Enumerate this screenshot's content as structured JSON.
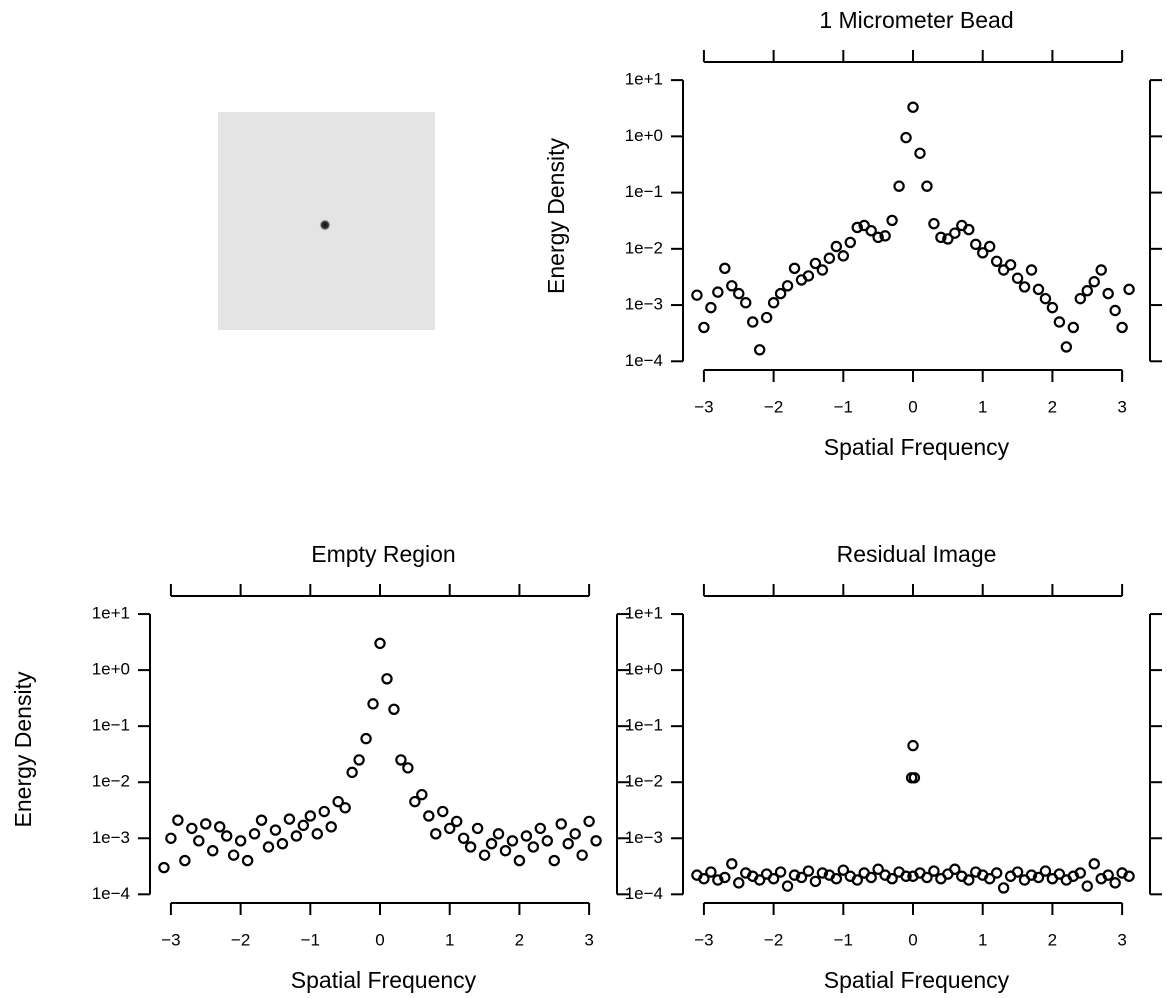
{
  "chart_data": [
    {
      "type": "scatter",
      "title": "1 Micrometer Bead",
      "xlabel": "Spatial Frequency",
      "ylabel": "Energy Density",
      "log_y": true,
      "marker": "open-circle",
      "color": "#000000",
      "x": [
        -3.1,
        -3.0,
        -2.9,
        -2.8,
        -2.7,
        -2.6,
        -2.5,
        -2.4,
        -2.3,
        -2.2,
        -2.1,
        -2.0,
        -1.9,
        -1.8,
        -1.7,
        -1.6,
        -1.5,
        -1.4,
        -1.3,
        -1.2,
        -1.1,
        -1.0,
        -0.9,
        -0.8,
        -0.7,
        -0.6,
        -0.5,
        -0.4,
        -0.3,
        -0.2,
        -0.1,
        0,
        0.1,
        0.2,
        0.3,
        0.4,
        0.5,
        0.6,
        0.7,
        0.8,
        0.9,
        1.0,
        1.1,
        1.2,
        1.3,
        1.4,
        1.5,
        1.6,
        1.7,
        1.8,
        1.9,
        2.0,
        2.1,
        2.2,
        2.3,
        2.4,
        2.5,
        2.6,
        2.7,
        2.8,
        2.9,
        3.0,
        3.1
      ],
      "values": [
        0.0015,
        0.0004,
        0.0009,
        0.0017,
        0.0045,
        0.0022,
        0.0016,
        0.0011,
        0.0005,
        0.00016,
        0.0006,
        0.0011,
        0.0016,
        0.0022,
        0.0045,
        0.0028,
        0.0033,
        0.0055,
        0.0042,
        0.0068,
        0.011,
        0.0075,
        0.013,
        0.024,
        0.026,
        0.021,
        0.016,
        0.017,
        0.032,
        0.13,
        0.95,
        3.3,
        0.5,
        0.13,
        0.028,
        0.016,
        0.015,
        0.019,
        0.026,
        0.022,
        0.012,
        0.0085,
        0.011,
        0.006,
        0.0042,
        0.0052,
        0.003,
        0.0021,
        0.0042,
        0.0019,
        0.0013,
        0.0009,
        0.0005,
        0.00018,
        0.0004,
        0.0013,
        0.0018,
        0.0026,
        0.0042,
        0.0016,
        0.0008,
        0.0004,
        0.0019
      ],
      "xlim": [
        -3.3,
        3.4
      ],
      "ylim": [
        7e-05,
        21
      ],
      "xticks": [
        {
          "value": -3,
          "label": "−3"
        },
        {
          "value": -2,
          "label": "−2"
        },
        {
          "value": -1,
          "label": "−1"
        },
        0,
        1,
        2,
        3
      ],
      "yticks": [
        {
          "value": 0.0001,
          "label": "1e−4"
        },
        {
          "value": 0.001,
          "label": "1e−3"
        },
        {
          "value": 0.01,
          "label": "1e−2"
        },
        {
          "value": 0.1,
          "label": "1e−1"
        },
        {
          "value": 1,
          "label": "1e+0"
        },
        {
          "value": 10,
          "label": "1e+1"
        }
      ]
    },
    {
      "type": "scatter",
      "title": "Empty Region",
      "xlabel": "Spatial Frequency",
      "ylabel": "Energy Density",
      "log_y": true,
      "marker": "open-circle",
      "color": "#000000",
      "x": [
        -3.1,
        -3.0,
        -2.9,
        -2.8,
        -2.7,
        -2.6,
        -2.5,
        -2.4,
        -2.3,
        -2.2,
        -2.1,
        -2.0,
        -1.9,
        -1.8,
        -1.7,
        -1.6,
        -1.5,
        -1.4,
        -1.3,
        -1.2,
        -1.1,
        -1.0,
        -0.9,
        -0.8,
        -0.7,
        -0.6,
        -0.5,
        -0.4,
        -0.3,
        -0.2,
        -0.1,
        0,
        0.1,
        0.2,
        0.3,
        0.4,
        0.5,
        0.6,
        0.7,
        0.8,
        0.9,
        1.0,
        1.1,
        1.2,
        1.3,
        1.4,
        1.5,
        1.6,
        1.7,
        1.8,
        1.9,
        2.0,
        2.1,
        2.2,
        2.3,
        2.4,
        2.5,
        2.6,
        2.7,
        2.8,
        2.9,
        3.0,
        3.1
      ],
      "values": [
        0.0003,
        0.001,
        0.0021,
        0.0004,
        0.0015,
        0.0009,
        0.0018,
        0.0006,
        0.0016,
        0.0011,
        0.0005,
        0.0009,
        0.0004,
        0.0012,
        0.0021,
        0.0007,
        0.0014,
        0.0008,
        0.0022,
        0.0011,
        0.0017,
        0.0025,
        0.0012,
        0.003,
        0.0016,
        0.0045,
        0.0035,
        0.015,
        0.025,
        0.06,
        0.25,
        3.0,
        0.7,
        0.2,
        0.025,
        0.018,
        0.0045,
        0.006,
        0.0025,
        0.0012,
        0.003,
        0.0015,
        0.002,
        0.001,
        0.0007,
        0.0015,
        0.0005,
        0.0008,
        0.0012,
        0.0006,
        0.0009,
        0.0004,
        0.0011,
        0.0007,
        0.0015,
        0.0009,
        0.0004,
        0.0018,
        0.0008,
        0.0012,
        0.0005,
        0.002,
        0.0009
      ],
      "xlim": [
        -3.3,
        3.4
      ],
      "ylim": [
        7e-05,
        21
      ],
      "xticks": [
        {
          "value": -3,
          "label": "−3"
        },
        {
          "value": -2,
          "label": "−2"
        },
        {
          "value": -1,
          "label": "−1"
        },
        0,
        1,
        2,
        3
      ],
      "yticks": [
        {
          "value": 0.0001,
          "label": "1e−4"
        },
        {
          "value": 0.001,
          "label": "1e−3"
        },
        {
          "value": 0.01,
          "label": "1e−2"
        },
        {
          "value": 0.1,
          "label": "1e−1"
        },
        {
          "value": 1,
          "label": "1e+0"
        },
        {
          "value": 10,
          "label": "1e+1"
        }
      ]
    },
    {
      "type": "scatter",
      "title": "Residual Image",
      "xlabel": "Spatial Frequency",
      "log_y": true,
      "marker": "open-circle",
      "color": "#000000",
      "x": [
        -3.1,
        -3.0,
        -2.9,
        -2.8,
        -2.7,
        -2.6,
        -2.5,
        -2.4,
        -2.3,
        -2.2,
        -2.1,
        -2.0,
        -1.9,
        -1.8,
        -1.7,
        -1.6,
        -1.5,
        -1.4,
        -1.3,
        -1.2,
        -1.1,
        -1.0,
        -0.9,
        -0.8,
        -0.7,
        -0.6,
        -0.5,
        -0.4,
        -0.3,
        -0.2,
        -0.1,
        -0.02,
        0,
        0,
        0.02,
        0.1,
        0.2,
        0.3,
        0.4,
        0.5,
        0.6,
        0.7,
        0.8,
        0.9,
        1.0,
        1.1,
        1.2,
        1.3,
        1.4,
        1.5,
        1.6,
        1.7,
        1.8,
        1.9,
        2.0,
        2.1,
        2.2,
        2.3,
        2.4,
        2.5,
        2.6,
        2.7,
        2.8,
        2.9,
        3.0,
        3.1
      ],
      "values": [
        0.00022,
        0.00019,
        0.00025,
        0.00018,
        0.0002,
        0.00035,
        0.00016,
        0.00024,
        0.00021,
        0.00018,
        0.00023,
        0.00019,
        0.00025,
        0.00014,
        0.00022,
        0.0002,
        0.00026,
        0.00017,
        0.00024,
        0.00022,
        0.00019,
        0.00027,
        0.00021,
        0.00018,
        0.00024,
        0.0002,
        0.00028,
        0.00022,
        0.00019,
        0.00025,
        0.00021,
        0.012,
        0.045,
        0.00021,
        0.012,
        0.00024,
        0.0002,
        0.00026,
        0.00019,
        0.00023,
        0.00028,
        0.00021,
        0.00018,
        0.00025,
        0.00022,
        0.00019,
        0.00024,
        0.00013,
        0.00021,
        0.00025,
        0.00018,
        0.00022,
        0.0002,
        0.00026,
        0.00019,
        0.00023,
        0.00018,
        0.00021,
        0.00024,
        0.00014,
        0.00035,
        0.00019,
        0.00022,
        0.00016,
        0.00024,
        0.00021
      ],
      "xlim": [
        -3.3,
        3.4
      ],
      "ylim": [
        7e-05,
        21
      ],
      "xticks": [
        {
          "value": -3,
          "label": "−3"
        },
        {
          "value": -2,
          "label": "−2"
        },
        {
          "value": -1,
          "label": "−1"
        },
        0,
        1,
        2,
        3
      ],
      "yticks": [
        {
          "value": 0.0001,
          "label": "1e−4"
        },
        {
          "value": 0.001,
          "label": "1e−3"
        },
        {
          "value": 0.01,
          "label": "1e−2"
        },
        {
          "value": 0.1,
          "label": "1e−1"
        },
        {
          "value": 1,
          "label": "1e+0"
        },
        {
          "value": 10,
          "label": "1e+1"
        }
      ]
    }
  ]
}
